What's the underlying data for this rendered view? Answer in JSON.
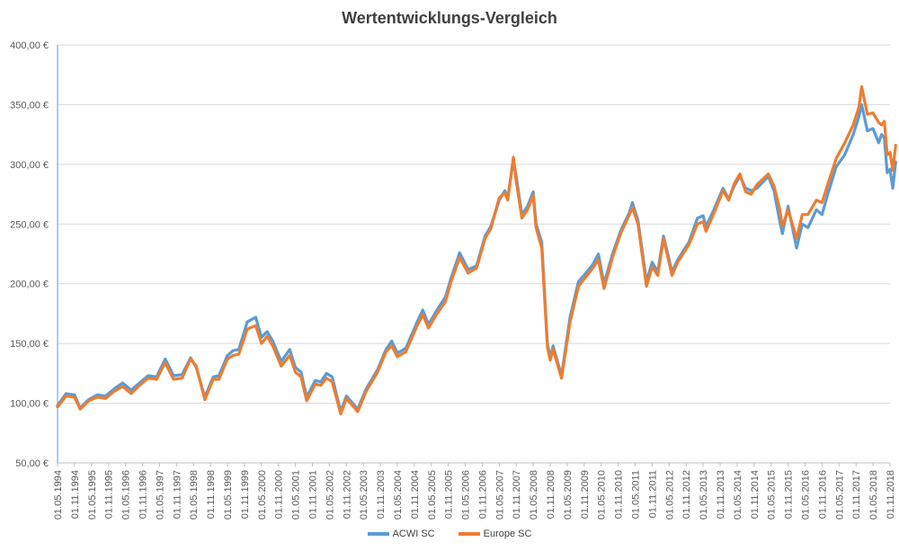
{
  "chart_data": {
    "type": "line",
    "title": "Wertentwicklungs-Vergleich",
    "xlabel": "",
    "ylabel": "",
    "ylim": [
      50,
      400
    ],
    "y_ticks": [
      "50,00 €",
      "100,00 €",
      "150,00 €",
      "200,00 €",
      "250,00 €",
      "300,00 €",
      "350,00 €",
      "400,00 €"
    ],
    "y_tick_values": [
      50,
      100,
      150,
      200,
      250,
      300,
      350,
      400
    ],
    "x_tick_labels": [
      "01.05.1994",
      "01.11.1994",
      "01.05.1995",
      "01.11.1995",
      "01.05.1996",
      "01.11.1996",
      "01.05.1997",
      "01.11.1997",
      "01.05.1998",
      "01.11.1998",
      "01.05.1999",
      "01.11.1999",
      "01.05.2000",
      "01.11.2000",
      "01.05.2001",
      "01.11.2001",
      "01.05.2002",
      "01.11.2002",
      "01.05.2003",
      "01.11.2003",
      "01.05.2004",
      "01.11.2004",
      "01.05.2005",
      "01.11.2005",
      "01.05.2006",
      "01.11.2006",
      "01.05.2007",
      "01.11.2007",
      "01.05.2008",
      "01.11.2008",
      "01.05.2009",
      "01.11.2009",
      "01.05.2010",
      "01.11.2010",
      "01.05.2011",
      "01.11.2011",
      "01.05.2012",
      "01.11.2012",
      "01.05.2013",
      "01.11.2013",
      "01.05.2014",
      "01.11.2014",
      "01.05.2015",
      "01.11.2015",
      "01.05.2016",
      "01.11.2016",
      "01.05.2017",
      "01.11.2017",
      "01.05.2018",
      "01.11.2018"
    ],
    "grid": "horizontal",
    "legend_position": "bottom",
    "x_start": "1994-05",
    "x_end": "2018-11",
    "series": [
      {
        "name": "ACWI SC",
        "color": "#5b9bd5",
        "points": [
          [
            "1994-05",
            98
          ],
          [
            "1994-08",
            108
          ],
          [
            "1994-11",
            107
          ],
          [
            "1995-01",
            96
          ],
          [
            "1995-04",
            103
          ],
          [
            "1995-07",
            107
          ],
          [
            "1995-10",
            106
          ],
          [
            "1996-01",
            112
          ],
          [
            "1996-04",
            117
          ],
          [
            "1996-07",
            111
          ],
          [
            "1996-10",
            117
          ],
          [
            "1997-01",
            123
          ],
          [
            "1997-04",
            122
          ],
          [
            "1997-07",
            137
          ],
          [
            "1997-10",
            123
          ],
          [
            "1998-01",
            124
          ],
          [
            "1998-04",
            138
          ],
          [
            "1998-06",
            130
          ],
          [
            "1998-09",
            105
          ],
          [
            "1998-12",
            122
          ],
          [
            "1999-02",
            123
          ],
          [
            "1999-05",
            140
          ],
          [
            "1999-07",
            144
          ],
          [
            "1999-09",
            145
          ],
          [
            "1999-12",
            168
          ],
          [
            "2000-03",
            172
          ],
          [
            "2000-05",
            155
          ],
          [
            "2000-07",
            160
          ],
          [
            "2000-09",
            152
          ],
          [
            "2000-12",
            135
          ],
          [
            "2001-03",
            145
          ],
          [
            "2001-05",
            130
          ],
          [
            "2001-07",
            126
          ],
          [
            "2001-09",
            105
          ],
          [
            "2001-12",
            119
          ],
          [
            "2002-02",
            118
          ],
          [
            "2002-04",
            125
          ],
          [
            "2002-06",
            122
          ],
          [
            "2002-09",
            93
          ],
          [
            "2002-11",
            106
          ],
          [
            "2003-03",
            95
          ],
          [
            "2003-06",
            112
          ],
          [
            "2003-10",
            128
          ],
          [
            "2004-01",
            145
          ],
          [
            "2004-03",
            152
          ],
          [
            "2004-05",
            142
          ],
          [
            "2004-08",
            146
          ],
          [
            "2004-12",
            168
          ],
          [
            "2005-02",
            178
          ],
          [
            "2005-04",
            166
          ],
          [
            "2005-07",
            178
          ],
          [
            "2005-10",
            189
          ],
          [
            "2005-12",
            205
          ],
          [
            "2006-03",
            226
          ],
          [
            "2006-06",
            212
          ],
          [
            "2006-09",
            215
          ],
          [
            "2006-12",
            240
          ],
          [
            "2007-02",
            248
          ],
          [
            "2007-05",
            270
          ],
          [
            "2007-07",
            278
          ],
          [
            "2007-08",
            272
          ],
          [
            "2007-10",
            304
          ],
          [
            "2007-11",
            290
          ],
          [
            "2008-01",
            258
          ],
          [
            "2008-03",
            265
          ],
          [
            "2008-05",
            277
          ],
          [
            "2008-06",
            250
          ],
          [
            "2008-08",
            235
          ],
          [
            "2008-10",
            150
          ],
          [
            "2008-11",
            138
          ],
          [
            "2008-12",
            148
          ],
          [
            "2009-03",
            123
          ],
          [
            "2009-06",
            172
          ],
          [
            "2009-09",
            202
          ],
          [
            "2009-12",
            210
          ],
          [
            "2010-02",
            216
          ],
          [
            "2010-04",
            225
          ],
          [
            "2010-06",
            200
          ],
          [
            "2010-09",
            225
          ],
          [
            "2010-12",
            245
          ],
          [
            "2011-03",
            260
          ],
          [
            "2011-04",
            268
          ],
          [
            "2011-06",
            253
          ],
          [
            "2011-09",
            202
          ],
          [
            "2011-11",
            218
          ],
          [
            "2012-01",
            210
          ],
          [
            "2012-03",
            240
          ],
          [
            "2012-06",
            210
          ],
          [
            "2012-08",
            220
          ],
          [
            "2012-12",
            235
          ],
          [
            "2013-03",
            255
          ],
          [
            "2013-05",
            257
          ],
          [
            "2013-06",
            248
          ],
          [
            "2013-09",
            263
          ],
          [
            "2013-12",
            280
          ],
          [
            "2014-02",
            271
          ],
          [
            "2014-04",
            282
          ],
          [
            "2014-06",
            290
          ],
          [
            "2014-08",
            280
          ],
          [
            "2014-10",
            278
          ],
          [
            "2014-12",
            280
          ],
          [
            "2015-04",
            290
          ],
          [
            "2015-06",
            278
          ],
          [
            "2015-08",
            253
          ],
          [
            "2015-09",
            242
          ],
          [
            "2015-11",
            265
          ],
          [
            "2016-02",
            230
          ],
          [
            "2016-04",
            250
          ],
          [
            "2016-06",
            247
          ],
          [
            "2016-09",
            262
          ],
          [
            "2016-11",
            258
          ],
          [
            "2017-01",
            275
          ],
          [
            "2017-04",
            298
          ],
          [
            "2017-07",
            308
          ],
          [
            "2017-10",
            325
          ],
          [
            "2017-12",
            340
          ],
          [
            "2018-01",
            350
          ],
          [
            "2018-03",
            328
          ],
          [
            "2018-05",
            330
          ],
          [
            "2018-07",
            318
          ],
          [
            "2018-08",
            325
          ],
          [
            "2018-09",
            322
          ],
          [
            "2018-10",
            293
          ],
          [
            "2018-11",
            296
          ],
          [
            "2018-12",
            280
          ],
          [
            "2019-01",
            302
          ]
        ]
      },
      {
        "name": "Europe SC",
        "color": "#ed7d31",
        "points": [
          [
            "1994-05",
            97
          ],
          [
            "1994-08",
            106
          ],
          [
            "1994-11",
            105
          ],
          [
            "1995-01",
            95
          ],
          [
            "1995-04",
            102
          ],
          [
            "1995-07",
            105
          ],
          [
            "1995-10",
            104
          ],
          [
            "1996-01",
            110
          ],
          [
            "1996-04",
            114
          ],
          [
            "1996-07",
            108
          ],
          [
            "1996-10",
            115
          ],
          [
            "1997-01",
            121
          ],
          [
            "1997-04",
            120
          ],
          [
            "1997-07",
            134
          ],
          [
            "1997-10",
            120
          ],
          [
            "1998-01",
            121
          ],
          [
            "1998-04",
            137
          ],
          [
            "1998-06",
            131
          ],
          [
            "1998-09",
            103
          ],
          [
            "1998-12",
            120
          ],
          [
            "1999-02",
            120
          ],
          [
            "1999-05",
            137
          ],
          [
            "1999-07",
            140
          ],
          [
            "1999-09",
            141
          ],
          [
            "1999-12",
            162
          ],
          [
            "2000-03",
            165
          ],
          [
            "2000-05",
            150
          ],
          [
            "2000-07",
            156
          ],
          [
            "2000-09",
            148
          ],
          [
            "2000-12",
            131
          ],
          [
            "2001-03",
            140
          ],
          [
            "2001-05",
            126
          ],
          [
            "2001-07",
            122
          ],
          [
            "2001-09",
            102
          ],
          [
            "2001-12",
            116
          ],
          [
            "2002-02",
            115
          ],
          [
            "2002-04",
            121
          ],
          [
            "2002-06",
            118
          ],
          [
            "2002-09",
            91
          ],
          [
            "2002-11",
            104
          ],
          [
            "2003-03",
            93
          ],
          [
            "2003-06",
            110
          ],
          [
            "2003-10",
            126
          ],
          [
            "2004-01",
            143
          ],
          [
            "2004-03",
            148
          ],
          [
            "2004-05",
            139
          ],
          [
            "2004-08",
            143
          ],
          [
            "2004-12",
            165
          ],
          [
            "2005-02",
            174
          ],
          [
            "2005-04",
            163
          ],
          [
            "2005-07",
            175
          ],
          [
            "2005-10",
            185
          ],
          [
            "2005-12",
            202
          ],
          [
            "2006-03",
            222
          ],
          [
            "2006-06",
            209
          ],
          [
            "2006-09",
            213
          ],
          [
            "2006-12",
            238
          ],
          [
            "2007-02",
            246
          ],
          [
            "2007-05",
            272
          ],
          [
            "2007-07",
            276
          ],
          [
            "2007-08",
            270
          ],
          [
            "2007-10",
            306
          ],
          [
            "2007-11",
            286
          ],
          [
            "2008-01",
            255
          ],
          [
            "2008-03",
            262
          ],
          [
            "2008-05",
            274
          ],
          [
            "2008-06",
            247
          ],
          [
            "2008-08",
            230
          ],
          [
            "2008-10",
            147
          ],
          [
            "2008-11",
            136
          ],
          [
            "2008-12",
            145
          ],
          [
            "2009-03",
            121
          ],
          [
            "2009-06",
            168
          ],
          [
            "2009-09",
            198
          ],
          [
            "2009-12",
            207
          ],
          [
            "2010-02",
            213
          ],
          [
            "2010-04",
            220
          ],
          [
            "2010-06",
            196
          ],
          [
            "2010-09",
            222
          ],
          [
            "2010-12",
            243
          ],
          [
            "2011-03",
            258
          ],
          [
            "2011-04",
            264
          ],
          [
            "2011-06",
            250
          ],
          [
            "2011-09",
            198
          ],
          [
            "2011-11",
            214
          ],
          [
            "2012-01",
            207
          ],
          [
            "2012-03",
            238
          ],
          [
            "2012-06",
            207
          ],
          [
            "2012-08",
            218
          ],
          [
            "2012-12",
            233
          ],
          [
            "2013-03",
            250
          ],
          [
            "2013-05",
            252
          ],
          [
            "2013-06",
            244
          ],
          [
            "2013-09",
            260
          ],
          [
            "2013-12",
            278
          ],
          [
            "2014-02",
            270
          ],
          [
            "2014-04",
            284
          ],
          [
            "2014-06",
            292
          ],
          [
            "2014-08",
            277
          ],
          [
            "2014-10",
            275
          ],
          [
            "2014-12",
            283
          ],
          [
            "2015-04",
            292
          ],
          [
            "2015-06",
            282
          ],
          [
            "2015-08",
            263
          ],
          [
            "2015-09",
            248
          ],
          [
            "2015-11",
            262
          ],
          [
            "2016-02",
            238
          ],
          [
            "2016-04",
            258
          ],
          [
            "2016-06",
            258
          ],
          [
            "2016-09",
            270
          ],
          [
            "2016-11",
            268
          ],
          [
            "2017-01",
            283
          ],
          [
            "2017-04",
            305
          ],
          [
            "2017-07",
            318
          ],
          [
            "2017-10",
            333
          ],
          [
            "2017-12",
            348
          ],
          [
            "2018-01",
            365
          ],
          [
            "2018-03",
            342
          ],
          [
            "2018-05",
            343
          ],
          [
            "2018-07",
            335
          ],
          [
            "2018-08",
            333
          ],
          [
            "2018-09",
            336
          ],
          [
            "2018-10",
            308
          ],
          [
            "2018-11",
            310
          ],
          [
            "2018-12",
            295
          ],
          [
            "2019-01",
            316
          ]
        ]
      }
    ]
  }
}
